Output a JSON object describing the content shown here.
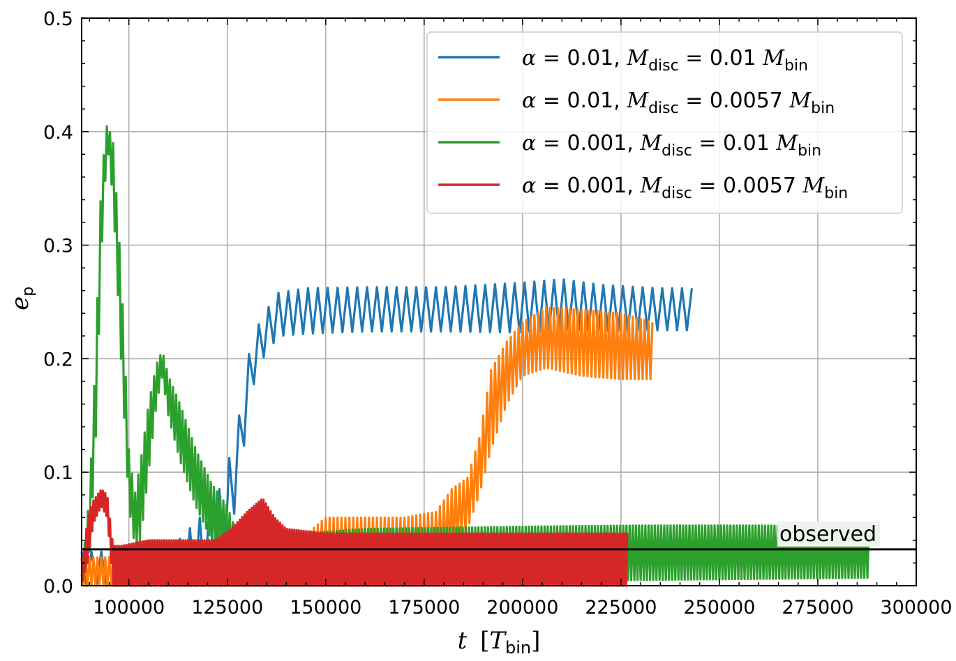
{
  "chart_data": {
    "type": "line",
    "xlabel": {
      "var": "t",
      "unit": "T",
      "unit_sub": "bin"
    },
    "ylabel": {
      "var": "e",
      "sub": "p"
    },
    "xlim": [
      88000,
      300000
    ],
    "ylim": [
      0.0,
      0.5
    ],
    "x_ticks": [
      100000,
      125000,
      150000,
      175000,
      200000,
      225000,
      250000,
      275000,
      300000
    ],
    "x_tick_labels": [
      "100000",
      "125000",
      "150000",
      "175000",
      "200000",
      "225000",
      "250000",
      "275000",
      "300000"
    ],
    "y_ticks": [
      0.0,
      0.1,
      0.2,
      0.3,
      0.4,
      0.5
    ],
    "y_tick_labels": [
      "0.0",
      "0.1",
      "0.2",
      "0.3",
      "0.4",
      "0.5"
    ],
    "grid": true,
    "legend_position": "top-right",
    "series": [
      {
        "name": "α = 0.01, Mdisc = 0.01 Mbin",
        "legend": {
          "alpha": "0.01",
          "mdisc": "0.01"
        },
        "color": "#1f77b4",
        "osc_period": 2500,
        "x": [
          88000,
          100000,
          110000,
          118000,
          124000,
          128000,
          131000,
          134000,
          138000,
          145000,
          160000,
          180000,
          200000,
          210000,
          220000,
          235000,
          243500
        ],
        "min": [
          0.0,
          0.0,
          0.0,
          0.0,
          0.005,
          0.09,
          0.17,
          0.2,
          0.22,
          0.222,
          0.224,
          0.224,
          0.223,
          0.225,
          0.224,
          0.225,
          0.225
        ],
        "max": [
          0.03,
          0.03,
          0.03,
          0.06,
          0.09,
          0.15,
          0.215,
          0.238,
          0.258,
          0.262,
          0.263,
          0.263,
          0.267,
          0.27,
          0.265,
          0.262,
          0.262
        ]
      },
      {
        "name": "α = 0.01, Mdisc = 0.0057 Mbin",
        "legend": {
          "alpha": "0.01",
          "mdisc": "0.0057"
        },
        "color": "#ff7f0e",
        "osc_period": 1000,
        "x": [
          88000,
          120000,
          140000,
          150000,
          170000,
          178000,
          182000,
          186000,
          189000,
          192000,
          196000,
          200000,
          206000,
          215000,
          225000,
          233000
        ],
        "min": [
          0.0,
          0.0,
          0.0,
          0.0,
          0.0,
          0.01,
          0.03,
          0.05,
          0.08,
          0.12,
          0.16,
          0.185,
          0.192,
          0.185,
          0.182,
          0.182
        ],
        "max": [
          0.025,
          0.025,
          0.03,
          0.06,
          0.06,
          0.065,
          0.085,
          0.095,
          0.13,
          0.19,
          0.215,
          0.232,
          0.245,
          0.243,
          0.24,
          0.232
        ]
      },
      {
        "name": "α = 0.001, Mdisc = 0.01 Mbin",
        "legend": {
          "alpha": "0.001",
          "mdisc": "0.01"
        },
        "color": "#2ca02c",
        "osc_period": 800,
        "x": [
          88000,
          90000,
          91500,
          93000,
          94500,
          96000,
          98000,
          100000,
          101500,
          103000,
          105000,
          107000,
          108500,
          110000,
          113000,
          117000,
          121000,
          125000,
          130000,
          133000,
          140000,
          160000,
          200000,
          230000,
          260000,
          288000
        ],
        "min": [
          0.0,
          0.03,
          0.12,
          0.29,
          0.39,
          0.34,
          0.2,
          0.07,
          0.035,
          0.04,
          0.1,
          0.16,
          0.185,
          0.15,
          0.11,
          0.07,
          0.04,
          0.03,
          0.0,
          0.0,
          0.0,
          0.003,
          0.005,
          0.005,
          0.006,
          0.007
        ],
        "max": [
          0.01,
          0.08,
          0.2,
          0.36,
          0.408,
          0.39,
          0.28,
          0.12,
          0.08,
          0.11,
          0.16,
          0.195,
          0.207,
          0.185,
          0.16,
          0.12,
          0.09,
          0.07,
          0.02,
          0.015,
          0.045,
          0.05,
          0.052,
          0.053,
          0.053,
          0.052
        ]
      },
      {
        "name": "α = 0.001, Mdisc = 0.0057 Mbin",
        "legend": {
          "alpha": "0.001",
          "mdisc": "0.0057"
        },
        "color": "#d62728",
        "osc_period": 600,
        "x": [
          88000,
          89500,
          91000,
          93000,
          94500,
          96000,
          98000,
          105000,
          115000,
          122000,
          126000,
          130000,
          134000,
          137000,
          140000,
          150000,
          170000,
          200000,
          226800
        ],
        "min": [
          0.0,
          0.02,
          0.055,
          0.07,
          0.06,
          0.0,
          0.0,
          0.0,
          0.0,
          0.0,
          0.0,
          0.0,
          0.0,
          0.0,
          0.0,
          0.0,
          0.0,
          0.0,
          0.0
        ],
        "max": [
          0.01,
          0.06,
          0.075,
          0.085,
          0.08,
          0.035,
          0.035,
          0.04,
          0.04,
          0.04,
          0.05,
          0.065,
          0.077,
          0.06,
          0.05,
          0.046,
          0.046,
          0.046,
          0.046
        ]
      }
    ],
    "hline": {
      "y": 0.032,
      "label": "observed",
      "color": "#000000"
    }
  }
}
